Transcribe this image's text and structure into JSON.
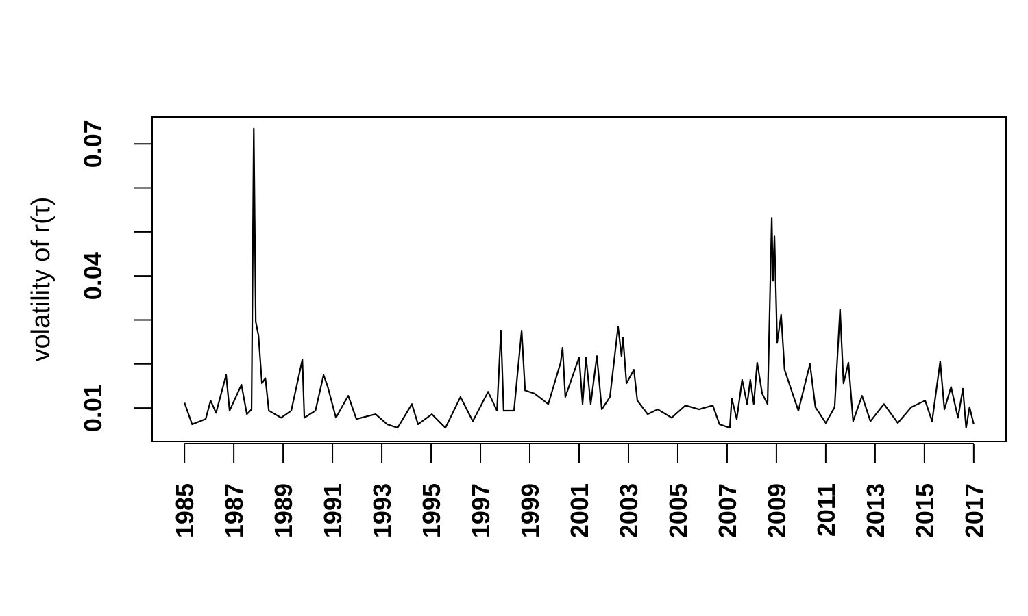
{
  "chart_data": {
    "type": "line",
    "y_label": "volatility of  r(τ)",
    "xlim": [
      1983.69,
      2018.31
    ],
    "ylim": [
      0.0024,
      0.0761
    ],
    "xticks": [
      1985,
      1987,
      1989,
      1991,
      1993,
      1995,
      1997,
      1999,
      2001,
      2003,
      2005,
      2007,
      2009,
      2011,
      2013,
      2015,
      2017
    ],
    "yticks": [
      0.01,
      {
        "value": 0.02,
        "label": null
      },
      {
        "value": 0.03,
        "label": null
      },
      0.04,
      {
        "value": 0.05,
        "label": null
      },
      {
        "value": 0.06,
        "label": null
      },
      0.07
    ],
    "x": [
      1985.0,
      1985.31,
      1985.86,
      1986.06,
      1986.28,
      1986.69,
      1986.83,
      1987.31,
      1987.53,
      1987.72,
      1987.81,
      1987.89,
      1988.0,
      1988.14,
      1988.28,
      1988.42,
      1988.92,
      1989.33,
      1989.78,
      1989.86,
      1990.31,
      1990.64,
      1990.81,
      1991.14,
      1991.64,
      1991.97,
      1992.75,
      1993.22,
      1993.64,
      1994.22,
      1994.47,
      1995.03,
      1995.58,
      1996.19,
      1996.69,
      1997.31,
      1997.67,
      1997.83,
      1997.94,
      1998.36,
      1998.67,
      1998.81,
      1999.19,
      1999.75,
      2000.25,
      2000.33,
      2000.44,
      2001.0,
      2001.14,
      2001.28,
      2001.47,
      2001.72,
      2001.92,
      2002.25,
      2002.58,
      2002.72,
      2002.78,
      2002.92,
      2003.22,
      2003.36,
      2003.78,
      2004.19,
      2004.75,
      2005.31,
      2005.86,
      2006.42,
      2006.69,
      2007.11,
      2007.19,
      2007.39,
      2007.61,
      2007.81,
      2007.94,
      2008.08,
      2008.22,
      2008.42,
      2008.64,
      2008.81,
      2008.86,
      2008.92,
      2009.03,
      2009.19,
      2009.33,
      2009.61,
      2009.89,
      2010.36,
      2010.58,
      2011.0,
      2011.36,
      2011.58,
      2011.72,
      2011.92,
      2012.11,
      2012.47,
      2012.81,
      2013.36,
      2013.92,
      2014.47,
      2015.03,
      2015.31,
      2015.64,
      2015.81,
      2016.08,
      2016.36,
      2016.56,
      2016.69,
      2016.83,
      2017.0
    ],
    "series": [
      {
        "color": "#000000",
        "values": [
          0.0112,
          0.0063,
          0.0075,
          0.0117,
          0.0089,
          0.0175,
          0.0094,
          0.0153,
          0.0086,
          0.0097,
          0.0735,
          0.0296,
          0.0265,
          0.0156,
          0.0168,
          0.0094,
          0.0078,
          0.0094,
          0.021,
          0.0078,
          0.0094,
          0.0175,
          0.0148,
          0.0078,
          0.0128,
          0.0075,
          0.0086,
          0.0063,
          0.0055,
          0.0109,
          0.0063,
          0.0086,
          0.0055,
          0.0125,
          0.007,
          0.0137,
          0.0094,
          0.0276,
          0.0094,
          0.0094,
          0.0276,
          0.014,
          0.0133,
          0.0109,
          0.0203,
          0.0237,
          0.0125,
          0.0215,
          0.0109,
          0.0215,
          0.0109,
          0.0218,
          0.0097,
          0.0125,
          0.0285,
          0.0218,
          0.026,
          0.0156,
          0.0187,
          0.0117,
          0.0086,
          0.0097,
          0.0078,
          0.0106,
          0.0097,
          0.0106,
          0.0063,
          0.0055,
          0.0122,
          0.0075,
          0.0164,
          0.0109,
          0.0164,
          0.0109,
          0.0203,
          0.0133,
          0.0109,
          0.0532,
          0.0389,
          0.049,
          0.0249,
          0.0312,
          0.0187,
          0.014,
          0.0094,
          0.02,
          0.0102,
          0.0066,
          0.0102,
          0.0324,
          0.0156,
          0.0203,
          0.007,
          0.0128,
          0.007,
          0.0109,
          0.0066,
          0.0102,
          0.0117,
          0.007,
          0.0206,
          0.0097,
          0.0148,
          0.0078,
          0.0144,
          0.0055,
          0.0102,
          0.0063
        ]
      }
    ]
  }
}
